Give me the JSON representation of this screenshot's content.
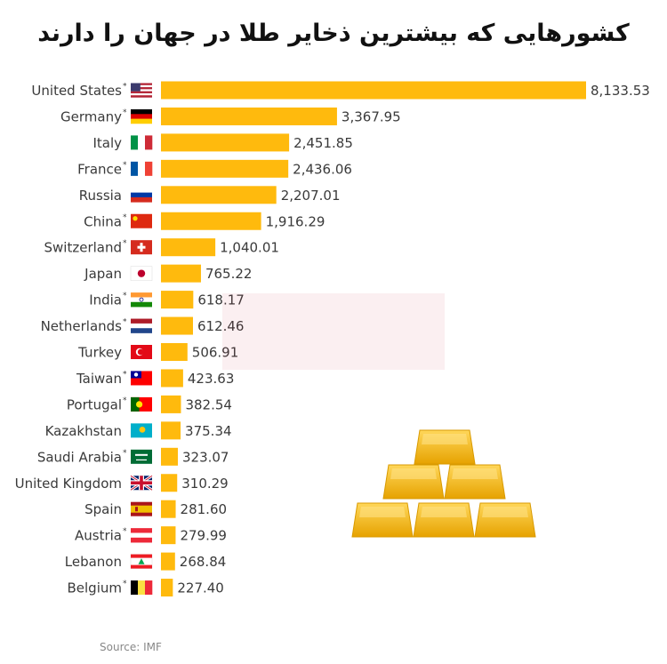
{
  "title": "کشورهایی که بیشترین ذخایر طلا در جهان را دارند",
  "source": "Source: IMF",
  "colors": {
    "bar": "#FFBA0D",
    "gold_light": "#FFD75A",
    "gold_dark": "#E6A200"
  },
  "chart_data": {
    "type": "bar",
    "orientation": "horizontal",
    "title": "کشورهایی که بیشترین ذخایر طلا در جهان را دارند",
    "xlabel": "",
    "ylabel": "",
    "categories": [
      "United States",
      "Germany",
      "Italy",
      "France",
      "Russia",
      "China",
      "Switzerland",
      "Japan",
      "India",
      "Netherlands",
      "Turkey",
      "Taiwan",
      "Portugal",
      "Kazakhstan",
      "Saudi Arabia",
      "United Kingdom",
      "Spain",
      "Austria",
      "Lebanon",
      "Belgium"
    ],
    "values": [
      8133.53,
      3367.95,
      2451.85,
      2436.06,
      2207.01,
      1916.29,
      1040.01,
      765.22,
      618.17,
      612.46,
      506.91,
      423.63,
      382.54,
      375.34,
      323.07,
      310.29,
      281.6,
      279.99,
      268.84,
      227.4
    ],
    "value_labels": [
      "8,133.53",
      "3,367.95",
      "2,451.85",
      "2,436.06",
      "2,207.01",
      "1,916.29",
      "1,040.01",
      "765.22",
      "618.17",
      "612.46",
      "506.91",
      "423.63",
      "382.54",
      "375.34",
      "323.07",
      "310.29",
      "281.60",
      "279.99",
      "268.84",
      "227.40"
    ],
    "asterisk": [
      true,
      true,
      false,
      true,
      false,
      true,
      true,
      false,
      true,
      true,
      false,
      true,
      true,
      false,
      true,
      false,
      false,
      true,
      false,
      true
    ],
    "flag_icons": [
      "flag-us-icon",
      "flag-de-icon",
      "flag-it-icon",
      "flag-fr-icon",
      "flag-ru-icon",
      "flag-cn-icon",
      "flag-ch-icon",
      "flag-jp-icon",
      "flag-in-icon",
      "flag-nl-icon",
      "flag-tr-icon",
      "flag-tw-icon",
      "flag-pt-icon",
      "flag-kz-icon",
      "flag-sa-icon",
      "flag-gb-icon",
      "flag-es-icon",
      "flag-at-icon",
      "flag-lb-icon",
      "flag-be-icon"
    ],
    "xlim": [
      0,
      8133.53
    ],
    "grid": false,
    "legend": "none"
  }
}
